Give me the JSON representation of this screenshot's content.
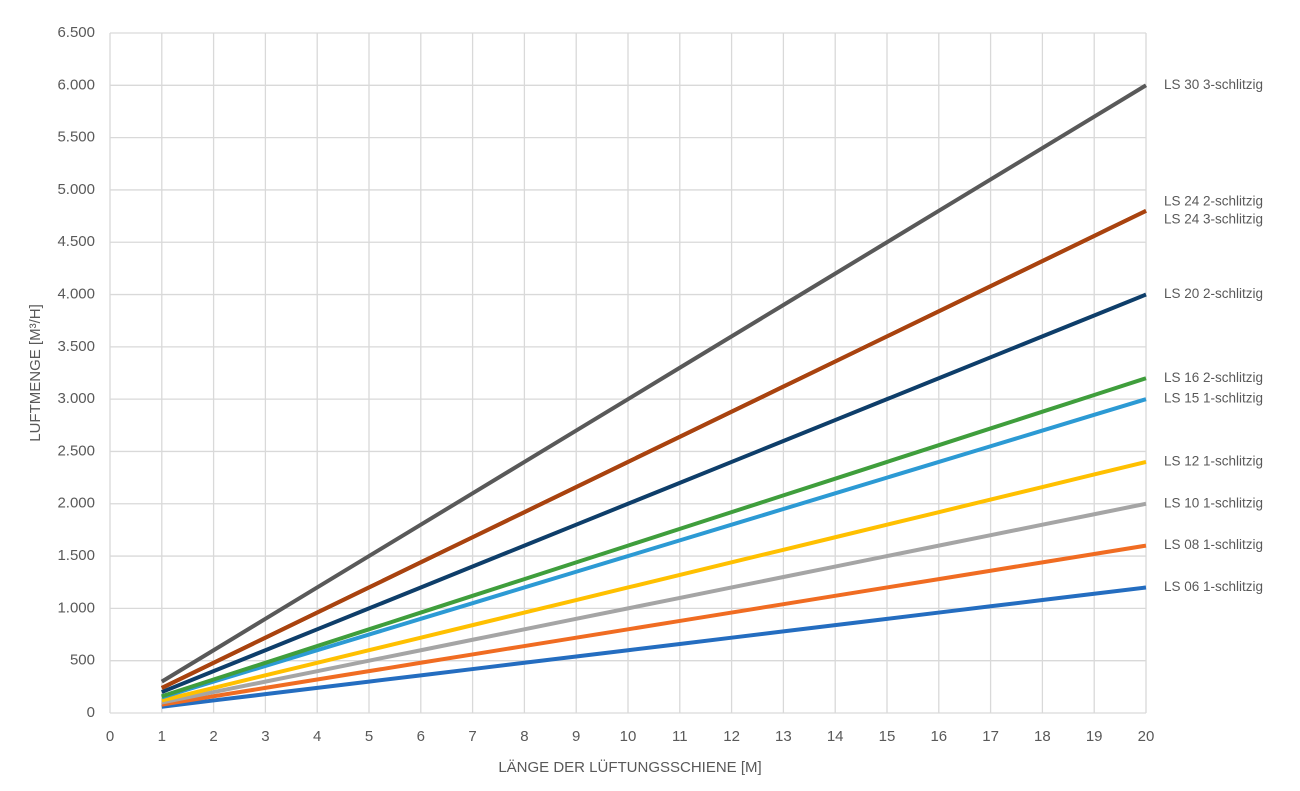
{
  "chart_data": {
    "type": "line",
    "x_label": "LÄNGE DER LÜFTUNGSSCHIENE [M]",
    "y_label": "LUFTMENGE [M³/H]",
    "x": [
      1,
      2,
      3,
      4,
      5,
      6,
      7,
      8,
      9,
      10,
      11,
      12,
      13,
      14,
      15,
      16,
      17,
      18,
      19,
      20
    ],
    "xlim": [
      0,
      20
    ],
    "xticks": [
      0,
      1,
      2,
      3,
      4,
      5,
      6,
      7,
      8,
      9,
      10,
      11,
      12,
      13,
      14,
      15,
      16,
      17,
      18,
      19,
      20
    ],
    "ylim": [
      0,
      6500
    ],
    "yticks": [
      0,
      500,
      {
        "value": 1000,
        "label": "1.000"
      },
      {
        "value": 1500,
        "label": "1.500"
      },
      {
        "value": 2000,
        "label": "2.000"
      },
      {
        "value": 2500,
        "label": "2.500"
      },
      {
        "value": 3000,
        "label": "3.000"
      },
      {
        "value": 3500,
        "label": "3.500"
      },
      {
        "value": 4000,
        "label": "4.000"
      },
      {
        "value": 4500,
        "label": "4.500"
      },
      {
        "value": 5000,
        "label": "5.000"
      },
      {
        "value": 5500,
        "label": "5.500"
      },
      {
        "value": 6000,
        "label": "6.000"
      },
      {
        "value": 6500,
        "label": "6.500"
      }
    ],
    "grid": true,
    "series": [
      {
        "name": "LS 30 3-schlitzig",
        "color": "#595959",
        "values": [
          300,
          600,
          900,
          1200,
          1500,
          1800,
          2100,
          2400,
          2700,
          3000,
          3300,
          3600,
          3900,
          4200,
          4500,
          4800,
          5100,
          5400,
          5700,
          6000
        ]
      },
      {
        "name": "LS 24 2-schlitzig",
        "color": "#a9430f",
        "values": [
          240,
          480,
          720,
          960,
          1200,
          1440,
          1680,
          1920,
          2160,
          2400,
          2640,
          2880,
          3120,
          3360,
          3600,
          3840,
          4080,
          4320,
          4560,
          4800
        ]
      },
      {
        "name": "LS 24 3-schlitzig",
        "color": "#a9430f",
        "values": [
          240,
          480,
          720,
          960,
          1200,
          1440,
          1680,
          1920,
          2160,
          2400,
          2640,
          2880,
          3120,
          3360,
          3600,
          3840,
          4080,
          4320,
          4560,
          4800
        ]
      },
      {
        "name": "LS 20 2-schlitzig",
        "color": "#0e3e6a",
        "values": [
          200,
          400,
          600,
          800,
          1000,
          1200,
          1400,
          1600,
          1800,
          2000,
          2200,
          2400,
          2600,
          2800,
          3000,
          3200,
          3400,
          3600,
          3800,
          4000
        ]
      },
      {
        "name": "LS 16 2-schlitzig",
        "color": "#3f9e3c",
        "values": [
          160,
          320,
          480,
          640,
          800,
          960,
          1120,
          1280,
          1440,
          1600,
          1760,
          1920,
          2080,
          2240,
          2400,
          2560,
          2720,
          2880,
          3040,
          3200
        ]
      },
      {
        "name": "LS 15 1-schlitzig",
        "color": "#2c9ad4",
        "values": [
          150,
          300,
          450,
          600,
          750,
          900,
          1050,
          1200,
          1350,
          1500,
          1650,
          1800,
          1950,
          2100,
          2250,
          2400,
          2550,
          2700,
          2850,
          3000
        ]
      },
      {
        "name": "LS 12 1-schlitzig",
        "color": "#ffc000",
        "values": [
          120,
          240,
          360,
          480,
          600,
          720,
          840,
          960,
          1080,
          1200,
          1320,
          1440,
          1560,
          1680,
          1800,
          1920,
          2040,
          2160,
          2280,
          2400
        ]
      },
      {
        "name": "LS 10 1-schlitzig",
        "color": "#a5a5a5",
        "values": [
          100,
          200,
          300,
          400,
          500,
          600,
          700,
          800,
          900,
          1000,
          1100,
          1200,
          1300,
          1400,
          1500,
          1600,
          1700,
          1800,
          1900,
          2000
        ]
      },
      {
        "name": "LS 08 1-schlitzig",
        "color": "#f06c22",
        "values": [
          80,
          160,
          240,
          320,
          400,
          480,
          560,
          640,
          720,
          800,
          880,
          960,
          1040,
          1120,
          1200,
          1280,
          1360,
          1440,
          1520,
          1600
        ]
      },
      {
        "name": "LS 06 1-schlitzig",
        "color": "#246dc0",
        "values": [
          60,
          120,
          180,
          240,
          300,
          360,
          420,
          480,
          540,
          600,
          660,
          720,
          780,
          840,
          900,
          960,
          1020,
          1080,
          1140,
          1200
        ]
      }
    ]
  }
}
